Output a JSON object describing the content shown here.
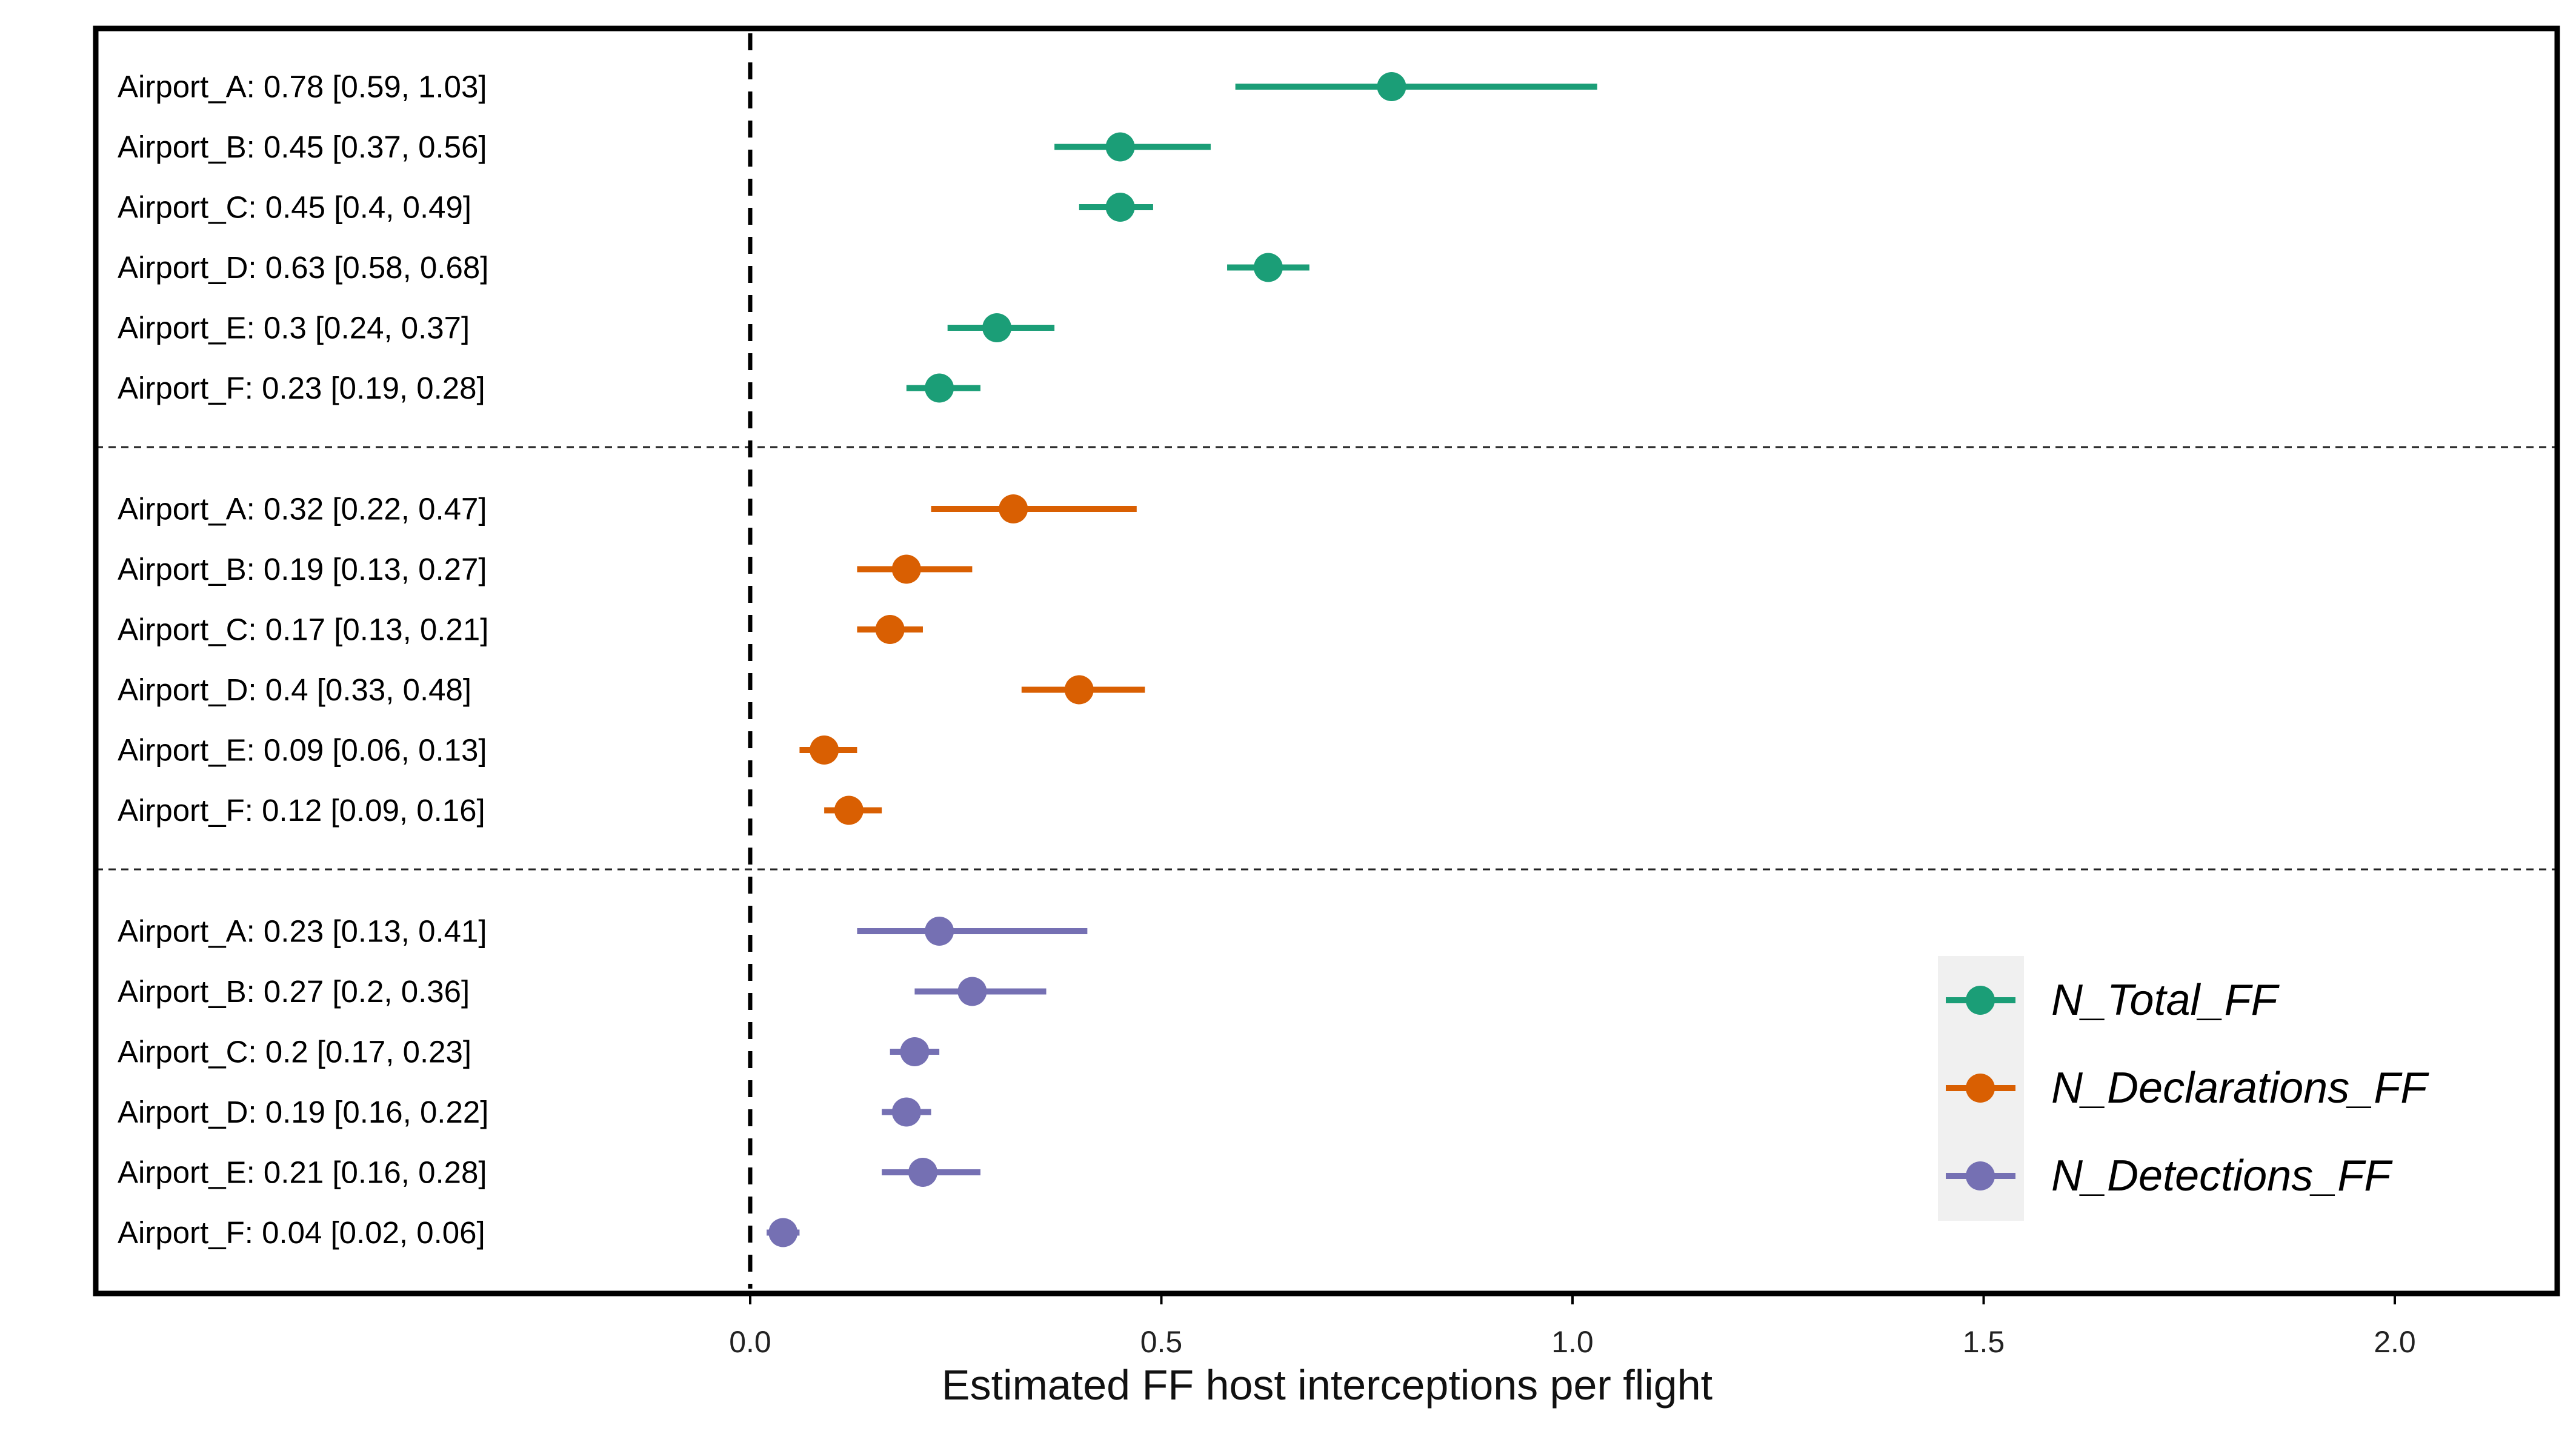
{
  "chart_data": {
    "type": "scatter",
    "subtype": "forest-plot",
    "xlabel": "Estimated FF host interceptions per flight",
    "xlim": [
      -0.8,
      2.2
    ],
    "xticks": [
      0.0,
      0.5,
      1.0,
      1.5,
      2.0
    ],
    "xtick_labels": [
      "0.0",
      "0.5",
      "1.0",
      "1.5",
      "2.0"
    ],
    "reference_line_x": 0.0,
    "grid": false,
    "legend_position": "bottom-right",
    "series": [
      {
        "name": "N_Total_FF",
        "color": "#1b9e77",
        "points": [
          {
            "label": "Airport_A: 0.78 [0.59, 1.03]",
            "category": "Airport_A",
            "estimate": 0.78,
            "lower": 0.59,
            "upper": 1.03
          },
          {
            "label": "Airport_B: 0.45 [0.37, 0.56]",
            "category": "Airport_B",
            "estimate": 0.45,
            "lower": 0.37,
            "upper": 0.56
          },
          {
            "label": "Airport_C: 0.45 [0.4, 0.49]",
            "category": "Airport_C",
            "estimate": 0.45,
            "lower": 0.4,
            "upper": 0.49
          },
          {
            "label": "Airport_D: 0.63 [0.58, 0.68]",
            "category": "Airport_D",
            "estimate": 0.63,
            "lower": 0.58,
            "upper": 0.68
          },
          {
            "label": "Airport_E: 0.3 [0.24, 0.37]",
            "category": "Airport_E",
            "estimate": 0.3,
            "lower": 0.24,
            "upper": 0.37
          },
          {
            "label": "Airport_F: 0.23 [0.19, 0.28]",
            "category": "Airport_F",
            "estimate": 0.23,
            "lower": 0.19,
            "upper": 0.28
          }
        ]
      },
      {
        "name": "N_Declarations_FF",
        "color": "#d95f02",
        "points": [
          {
            "label": "Airport_A: 0.32 [0.22, 0.47]",
            "category": "Airport_A",
            "estimate": 0.32,
            "lower": 0.22,
            "upper": 0.47
          },
          {
            "label": "Airport_B: 0.19 [0.13, 0.27]",
            "category": "Airport_B",
            "estimate": 0.19,
            "lower": 0.13,
            "upper": 0.27
          },
          {
            "label": "Airport_C: 0.17 [0.13, 0.21]",
            "category": "Airport_C",
            "estimate": 0.17,
            "lower": 0.13,
            "upper": 0.21
          },
          {
            "label": "Airport_D: 0.4 [0.33, 0.48]",
            "category": "Airport_D",
            "estimate": 0.4,
            "lower": 0.33,
            "upper": 0.48
          },
          {
            "label": "Airport_E: 0.09 [0.06, 0.13]",
            "category": "Airport_E",
            "estimate": 0.09,
            "lower": 0.06,
            "upper": 0.13
          },
          {
            "label": "Airport_F: 0.12 [0.09, 0.16]",
            "category": "Airport_F",
            "estimate": 0.12,
            "lower": 0.09,
            "upper": 0.16
          }
        ]
      },
      {
        "name": "N_Detections_FF",
        "color": "#7570b3",
        "points": [
          {
            "label": "Airport_A: 0.23 [0.13, 0.41]",
            "category": "Airport_A",
            "estimate": 0.23,
            "lower": 0.13,
            "upper": 0.41
          },
          {
            "label": "Airport_B: 0.27 [0.2, 0.36]",
            "category": "Airport_B",
            "estimate": 0.27,
            "lower": 0.2,
            "upper": 0.36
          },
          {
            "label": "Airport_C: 0.2 [0.17, 0.23]",
            "category": "Airport_C",
            "estimate": 0.2,
            "lower": 0.17,
            "upper": 0.23
          },
          {
            "label": "Airport_D: 0.19 [0.16, 0.22]",
            "category": "Airport_D",
            "estimate": 0.19,
            "lower": 0.16,
            "upper": 0.22
          },
          {
            "label": "Airport_E: 0.21 [0.16, 0.28]",
            "category": "Airport_E",
            "estimate": 0.21,
            "lower": 0.16,
            "upper": 0.28
          },
          {
            "label": "Airport_F: 0.04 [0.02, 0.06]",
            "category": "Airport_F",
            "estimate": 0.04,
            "lower": 0.02,
            "upper": 0.06
          }
        ]
      }
    ]
  }
}
